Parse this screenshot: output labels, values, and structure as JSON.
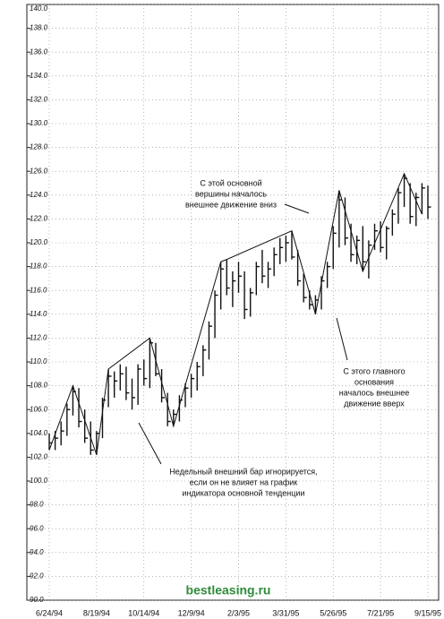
{
  "chart_data": {
    "type": "ohlc",
    "ylim": [
      90,
      140
    ],
    "yticks": [
      {
        "value": 90,
        "label": "90.0"
      },
      {
        "value": 92,
        "label": "92.0"
      },
      {
        "value": 94,
        "label": "94.0"
      },
      {
        "value": 96,
        "label": "96.0"
      },
      {
        "value": 98,
        "label": "98.0"
      },
      {
        "value": 100,
        "label": "100.0"
      },
      {
        "value": 102,
        "label": "102.0"
      },
      {
        "value": 104,
        "label": "104.0"
      },
      {
        "value": 106,
        "label": "106.0"
      },
      {
        "value": 108,
        "label": "108.0"
      },
      {
        "value": 110,
        "label": "110.0"
      },
      {
        "value": 112,
        "label": "112.0"
      },
      {
        "value": 114,
        "label": "114.0"
      },
      {
        "value": 116,
        "label": "116.0"
      },
      {
        "value": 118,
        "label": "118.0"
      },
      {
        "value": 120,
        "label": "120.0"
      },
      {
        "value": 122,
        "label": "122.0"
      },
      {
        "value": 124,
        "label": "124.0"
      },
      {
        "value": 126,
        "label": "126.0"
      },
      {
        "value": 128,
        "label": "128.0"
      },
      {
        "value": 130,
        "label": "130.0"
      },
      {
        "value": 132,
        "label": "132.0"
      },
      {
        "value": 134,
        "label": "134.0"
      },
      {
        "value": 136,
        "label": "136.0"
      },
      {
        "value": 138,
        "label": "138.0"
      },
      {
        "value": 140,
        "label": "140.0"
      }
    ],
    "categories": [
      "6/24/94",
      null,
      null,
      null,
      null,
      null,
      null,
      null,
      "8/19/94",
      null,
      null,
      null,
      null,
      null,
      null,
      null,
      "10/14/94",
      null,
      null,
      null,
      null,
      null,
      null,
      null,
      "12/9/94",
      null,
      null,
      null,
      null,
      null,
      null,
      null,
      "2/3/95",
      null,
      null,
      null,
      null,
      null,
      null,
      null,
      "3/31/95",
      null,
      null,
      null,
      null,
      null,
      null,
      null,
      "5/26/95",
      null,
      null,
      null,
      null,
      null,
      null,
      null,
      "7/21/95",
      null,
      null,
      null,
      null,
      null,
      null,
      null,
      "9/15/95"
    ],
    "high": [
      104,
      104.2,
      105,
      106.5,
      108,
      107.8,
      106,
      105,
      104.2,
      107,
      109.4,
      109.2,
      109.8,
      109.6,
      108.6,
      109.8,
      110.2,
      112,
      111.6,
      109.4,
      107.4,
      106,
      107.2,
      108.2,
      109,
      110,
      111.4,
      113.4,
      116,
      118.4,
      118.6,
      117.6,
      118.4,
      117.6,
      116.2,
      118.4,
      119.4,
      118.4,
      119.6,
      120.4,
      120.6,
      121,
      119.4,
      117.4,
      116,
      115.6,
      117.2,
      118.4,
      121.4,
      124.4,
      123.8,
      121.6,
      120.6,
      121.4,
      120.2,
      121.6,
      121.8,
      121.4,
      122.8,
      124.6,
      125.8,
      125,
      124.2,
      125,
      124.8
    ],
    "low": [
      102.6,
      102.6,
      103,
      103.8,
      105.5,
      104.5,
      103.2,
      102.2,
      102.2,
      103.6,
      106.2,
      107,
      107.6,
      106.8,
      106,
      106.4,
      108,
      107.8,
      108.8,
      106.6,
      104.6,
      104.6,
      105,
      106.2,
      107,
      107.6,
      108.8,
      110.2,
      112,
      114.4,
      115.6,
      114.6,
      115.8,
      113.6,
      113.8,
      115.6,
      116.6,
      116.2,
      117.2,
      118.2,
      118.4,
      118.6,
      116.4,
      115,
      114.4,
      114,
      114.4,
      116.2,
      117.8,
      119.6,
      119.8,
      118.4,
      118.2,
      117.6,
      117,
      119.4,
      119.2,
      118.6,
      120.6,
      121.6,
      123,
      121.6,
      121.4,
      122.4,
      122
    ],
    "close": [
      103.2,
      103.6,
      104.2,
      106,
      107.5,
      105,
      103.6,
      102.6,
      104,
      106.8,
      108.8,
      108.4,
      109,
      107.4,
      107,
      109.4,
      108.6,
      111.6,
      109,
      107,
      105,
      105.6,
      106.8,
      107.8,
      108.6,
      109.6,
      111,
      113,
      115.6,
      117.8,
      116.2,
      116.8,
      117.2,
      114.4,
      115.8,
      118,
      117.2,
      117.8,
      119,
      119.6,
      120,
      118.8,
      116.8,
      115.4,
      114.8,
      115.2,
      116.8,
      118,
      120.8,
      123.6,
      120.4,
      119,
      120.2,
      118.4,
      119.8,
      121,
      119.6,
      121.2,
      122.4,
      124.2,
      125.4,
      122.2,
      123.8,
      124.6,
      123
    ],
    "trend_x": [
      0,
      4,
      8,
      10,
      17,
      21,
      29,
      30,
      41,
      45,
      49,
      53,
      60,
      63
    ],
    "trend_y": [
      102.6,
      108,
      102.2,
      109.4,
      112,
      104.6,
      118.4,
      118.6,
      121,
      114,
      124.4,
      117.6,
      125.8,
      122.4
    ],
    "annotations": [
      {
        "lines": [
          "С этой основной",
          "вершины началось",
          "внешнее движение вниз"
        ]
      },
      {
        "lines": [
          "С этого главного",
          "основания",
          "началось внешнее",
          "движение вверх"
        ]
      },
      {
        "lines": [
          "Недельный внешний бар игнорируется,",
          "если он не влияет на график",
          "индикатора основной тенденции"
        ]
      }
    ],
    "watermark": "bestleasing.ru",
    "grid": true
  }
}
